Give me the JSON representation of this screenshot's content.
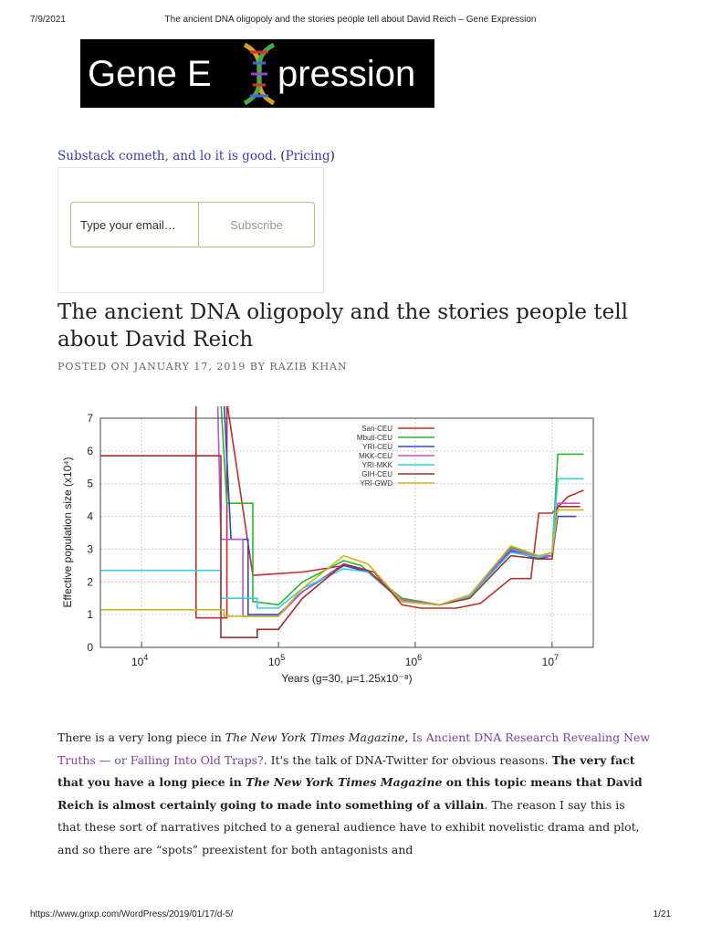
{
  "print_header": {
    "date": "7/9/2021",
    "title": "The ancient DNA oligopoly and the stories people tell about David Reich – Gene Expression"
  },
  "logo": {
    "text_left": "Gene E",
    "text_right": "pression"
  },
  "promo": {
    "link_text": "Substack cometh, and lo it is good.",
    "paren_open": " (",
    "pricing_label": "Pricing",
    "paren_close": ")"
  },
  "subscribe": {
    "email_placeholder": "Type your email…",
    "button_label": "Subscribe"
  },
  "post": {
    "title": "The ancient DNA oligopoly and the stories people tell about David Reich",
    "meta_prefix": "POSTED ON JANUARY 17, 2019 BY ",
    "author": "RAZIB KHAN"
  },
  "chart_data": {
    "type": "line",
    "title": "",
    "xlabel": "Years (g=30, μ=1.25x10⁻⁸)",
    "ylabel": "Effective population size (x10⁴)",
    "x_scale": "log",
    "xlim": [
      5000,
      20000000
    ],
    "ylim": [
      0,
      7
    ],
    "x_ticks": [
      {
        "value": 10000,
        "base": "10",
        "exp": "4"
      },
      {
        "value": 100000,
        "base": "10",
        "exp": "5"
      },
      {
        "value": 1000000,
        "base": "10",
        "exp": "6"
      },
      {
        "value": 10000000,
        "base": "10",
        "exp": "7"
      }
    ],
    "y_ticks": [
      "0",
      "1",
      "2",
      "3",
      "4",
      "5",
      "6",
      "7"
    ],
    "legend_position": "top-right",
    "series": [
      {
        "name": "San-CEU",
        "color": "#c0302a",
        "points": [
          [
            25000,
            7.5
          ],
          [
            25000,
            0.9
          ],
          [
            42000,
            0.9
          ],
          [
            42000,
            7.5
          ],
          [
            65000,
            2.2
          ],
          [
            150000,
            2.3
          ],
          [
            300000,
            2.5
          ],
          [
            500000,
            2.3
          ],
          [
            800000,
            1.3
          ],
          [
            1100000,
            1.2
          ],
          [
            2000000,
            1.2
          ],
          [
            3000000,
            1.35
          ],
          [
            5000000,
            2.1
          ],
          [
            7000000,
            2.1
          ],
          [
            8000000,
            4.1
          ],
          [
            10000000,
            4.1
          ],
          [
            13000000,
            4.6
          ],
          [
            17000000,
            4.8
          ]
        ]
      },
      {
        "name": "Mbuti-CEU",
        "color": "#2db32d",
        "points": [
          [
            38000,
            7.5
          ],
          [
            42000,
            4.4
          ],
          [
            65000,
            4.4
          ],
          [
            65000,
            1.4
          ],
          [
            100000,
            1.3
          ],
          [
            150000,
            2.0
          ],
          [
            300000,
            2.65
          ],
          [
            400000,
            2.5
          ],
          [
            800000,
            1.5
          ],
          [
            1500000,
            1.3
          ],
          [
            2500000,
            1.6
          ],
          [
            5000000,
            3.05
          ],
          [
            8000000,
            2.8
          ],
          [
            10000000,
            2.8
          ],
          [
            11000000,
            5.9
          ],
          [
            17000000,
            5.9
          ]
        ]
      },
      {
        "name": "YRI-CEU",
        "color": "#2e4bd0",
        "points": [
          [
            40000,
            7.5
          ],
          [
            45000,
            3.3
          ],
          [
            60000,
            3.3
          ],
          [
            60000,
            1.0
          ],
          [
            100000,
            1.0
          ],
          [
            150000,
            1.7
          ],
          [
            300000,
            2.5
          ],
          [
            450000,
            2.3
          ],
          [
            800000,
            1.4
          ],
          [
            1500000,
            1.3
          ],
          [
            2500000,
            1.55
          ],
          [
            5000000,
            2.95
          ],
          [
            8000000,
            2.7
          ],
          [
            10000000,
            2.8
          ],
          [
            11000000,
            4.0
          ],
          [
            15000000,
            4.0
          ]
        ]
      },
      {
        "name": "MKK-CEU",
        "color": "#c24fd6",
        "points": [
          [
            36000,
            7.5
          ],
          [
            38000,
            3.3
          ],
          [
            55000,
            3.3
          ],
          [
            55000,
            0.95
          ],
          [
            100000,
            0.95
          ],
          [
            150000,
            1.7
          ],
          [
            300000,
            2.55
          ],
          [
            450000,
            2.35
          ],
          [
            800000,
            1.45
          ],
          [
            1500000,
            1.3
          ],
          [
            2500000,
            1.6
          ],
          [
            5000000,
            3.0
          ],
          [
            8000000,
            2.75
          ],
          [
            10000000,
            2.8
          ],
          [
            11000000,
            4.4
          ],
          [
            16000000,
            4.4
          ]
        ]
      },
      {
        "name": "YRI-MKK",
        "color": "#2fd3e0",
        "points": [
          [
            5000,
            2.35
          ],
          [
            38000,
            2.35
          ],
          [
            38000,
            1.5
          ],
          [
            70000,
            1.5
          ],
          [
            70000,
            1.2
          ],
          [
            100000,
            1.2
          ],
          [
            150000,
            1.8
          ],
          [
            300000,
            2.4
          ],
          [
            450000,
            2.3
          ],
          [
            800000,
            1.4
          ],
          [
            1500000,
            1.3
          ],
          [
            2500000,
            1.55
          ],
          [
            5000000,
            2.9
          ],
          [
            8000000,
            2.75
          ],
          [
            10000000,
            2.9
          ],
          [
            11000000,
            5.15
          ],
          [
            17000000,
            5.15
          ]
        ]
      },
      {
        "name": "GIH-CEU",
        "color": "#a03030",
        "points": [
          [
            5000,
            5.85
          ],
          [
            38000,
            5.85
          ],
          [
            38000,
            0.3
          ],
          [
            70000,
            0.3
          ],
          [
            70000,
            0.55
          ],
          [
            100000,
            0.55
          ],
          [
            150000,
            1.5
          ],
          [
            300000,
            2.55
          ],
          [
            450000,
            2.35
          ],
          [
            800000,
            1.4
          ],
          [
            1500000,
            1.3
          ],
          [
            2500000,
            1.5
          ],
          [
            5000000,
            2.8
          ],
          [
            8000000,
            2.7
          ],
          [
            10000000,
            2.7
          ],
          [
            11000000,
            4.3
          ],
          [
            16000000,
            4.3
          ]
        ]
      },
      {
        "name": "YRI-GWD",
        "color": "#c8b820",
        "points": [
          [
            5000,
            1.15
          ],
          [
            40000,
            1.15
          ],
          [
            40000,
            0.95
          ],
          [
            100000,
            0.95
          ],
          [
            150000,
            1.8
          ],
          [
            300000,
            2.8
          ],
          [
            450000,
            2.55
          ],
          [
            800000,
            1.4
          ],
          [
            1500000,
            1.3
          ],
          [
            2500000,
            1.6
          ],
          [
            5000000,
            3.1
          ],
          [
            8000000,
            2.8
          ],
          [
            10000000,
            2.9
          ],
          [
            11000000,
            4.2
          ],
          [
            17000000,
            4.2
          ]
        ]
      }
    ]
  },
  "article": {
    "p1_a": "There is a very long piece in ",
    "p1_mag": "The New York Times Magazine",
    "p1_b": ", ",
    "p1_link": "Is Ancient DNA Research Revealing New Truths — or Falling Into Old Traps?",
    "p1_c": ". It's the talk of DNA-Twitter for obvious reasons. ",
    "p1_bold_a": "The very fact that you have a long piece in ",
    "p1_bold_mag": "The New York Times Magazine",
    "p1_bold_b": " on this topic means that David Reich is almost certainly going to made into something of a villain",
    "p1_d": ". The reason I say this is that these sort of narratives pitched to a general audience have to exhibit novelistic drama and plot, and so there are “spots” preexistent for both antagonists and"
  },
  "print_footer": {
    "url": "https://www.gnxp.com/WordPress/2019/01/17/d-5/",
    "page": "1/21"
  }
}
